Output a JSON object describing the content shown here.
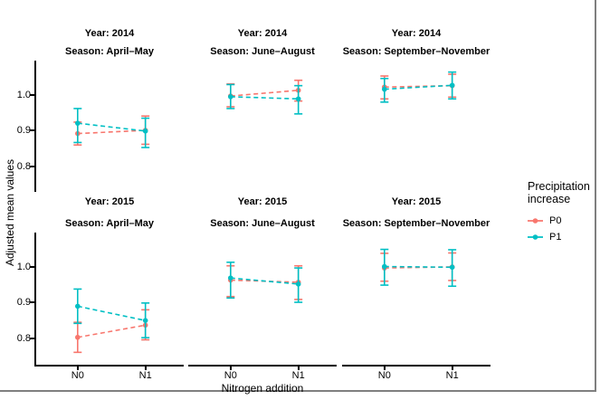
{
  "axes": {
    "y_label": "Adjusted mean values",
    "x_label": "Nitrogen addition",
    "y_tick_labels": [
      "1.0",
      "0.9",
      "0.8"
    ],
    "x_tick_labels": [
      "N0",
      "N1"
    ]
  },
  "legend": {
    "title_lines": [
      "Precipitation",
      "increase"
    ],
    "items": [
      {
        "label": "P0",
        "color": "#F8766D"
      },
      {
        "label": "P1",
        "color": "#00BFC4"
      }
    ]
  },
  "chart_data": {
    "type": "line",
    "mark": "point-with-error-bars-dashed-lines",
    "facet_grid": {
      "rows": [
        "Year: 2014",
        "Year: 2015"
      ],
      "cols": [
        "Season: April–May",
        "Season: June–August",
        "Season: September–November"
      ]
    },
    "x_categories": [
      "N0",
      "N1"
    ],
    "y_ticks": [
      1.0,
      0.9,
      0.8
    ],
    "ylim": [
      0.725,
      1.095
    ],
    "grid": false,
    "legend_position": "right",
    "series_colors": {
      "P0": "#F8766D",
      "P1": "#00BFC4"
    },
    "facets": [
      {
        "row": 0,
        "col": 0,
        "year": "Year: 2014",
        "season": "Season: April–May",
        "series": [
          {
            "name": "P0",
            "points": [
              {
                "x": "N0",
                "y": 0.891,
                "lo": 0.859,
                "hi": 0.923
              },
              {
                "x": "N1",
                "y": 0.9,
                "lo": 0.861,
                "hi": 0.94
              }
            ]
          },
          {
            "name": "P1",
            "points": [
              {
                "x": "N0",
                "y": 0.92,
                "lo": 0.866,
                "hi": 0.961
              },
              {
                "x": "N1",
                "y": 0.898,
                "lo": 0.852,
                "hi": 0.934
              }
            ]
          }
        ]
      },
      {
        "row": 0,
        "col": 1,
        "year": "Year: 2014",
        "season": "Season: June–August",
        "series": [
          {
            "name": "P0",
            "points": [
              {
                "x": "N0",
                "y": 0.996,
                "lo": 0.966,
                "hi": 1.03
              },
              {
                "x": "N1",
                "y": 1.012,
                "lo": 0.982,
                "hi": 1.04
              }
            ]
          },
          {
            "name": "P1",
            "points": [
              {
                "x": "N0",
                "y": 0.994,
                "lo": 0.961,
                "hi": 1.028
              },
              {
                "x": "N1",
                "y": 0.988,
                "lo": 0.946,
                "hi": 1.025
              }
            ]
          }
        ]
      },
      {
        "row": 0,
        "col": 2,
        "year": "Year: 2014",
        "season": "Season: September–November",
        "series": [
          {
            "name": "P0",
            "points": [
              {
                "x": "N0",
                "y": 1.021,
                "lo": 0.988,
                "hi": 1.052
              },
              {
                "x": "N1",
                "y": 1.025,
                "lo": 0.993,
                "hi": 1.057
              }
            ]
          },
          {
            "name": "P1",
            "points": [
              {
                "x": "N0",
                "y": 1.015,
                "lo": 0.979,
                "hi": 1.045
              },
              {
                "x": "N1",
                "y": 1.026,
                "lo": 0.988,
                "hi": 1.063
              }
            ]
          }
        ]
      },
      {
        "row": 1,
        "col": 0,
        "year": "Year: 2015",
        "season": "Season: April–May",
        "series": [
          {
            "name": "P0",
            "points": [
              {
                "x": "N0",
                "y": 0.802,
                "lo": 0.76,
                "hi": 0.844
              },
              {
                "x": "N1",
                "y": 0.836,
                "lo": 0.795,
                "hi": 0.879
              }
            ]
          },
          {
            "name": "P1",
            "points": [
              {
                "x": "N0",
                "y": 0.889,
                "lo": 0.841,
                "hi": 0.937
              },
              {
                "x": "N1",
                "y": 0.849,
                "lo": 0.801,
                "hi": 0.898
              }
            ]
          }
        ]
      },
      {
        "row": 1,
        "col": 1,
        "year": "Year: 2015",
        "season": "Season: June–August",
        "series": [
          {
            "name": "P0",
            "points": [
              {
                "x": "N0",
                "y": 0.962,
                "lo": 0.916,
                "hi": 1.002
              },
              {
                "x": "N1",
                "y": 0.956,
                "lo": 0.908,
                "hi": 1.002
              }
            ]
          },
          {
            "name": "P1",
            "points": [
              {
                "x": "N0",
                "y": 0.968,
                "lo": 0.912,
                "hi": 1.012
              },
              {
                "x": "N1",
                "y": 0.951,
                "lo": 0.9,
                "hi": 0.996
              }
            ]
          }
        ]
      },
      {
        "row": 1,
        "col": 2,
        "year": "Year: 2015",
        "season": "Season: September–November",
        "series": [
          {
            "name": "P0",
            "points": [
              {
                "x": "N0",
                "y": 0.996,
                "lo": 0.959,
                "hi": 1.037
              },
              {
                "x": "N1",
                "y": 0.999,
                "lo": 0.961,
                "hi": 1.038
              }
            ]
          },
          {
            "name": "P1",
            "points": [
              {
                "x": "N0",
                "y": 1.0,
                "lo": 0.948,
                "hi": 1.048
              },
              {
                "x": "N1",
                "y": 0.998,
                "lo": 0.945,
                "hi": 1.047
              }
            ]
          }
        ]
      }
    ]
  }
}
